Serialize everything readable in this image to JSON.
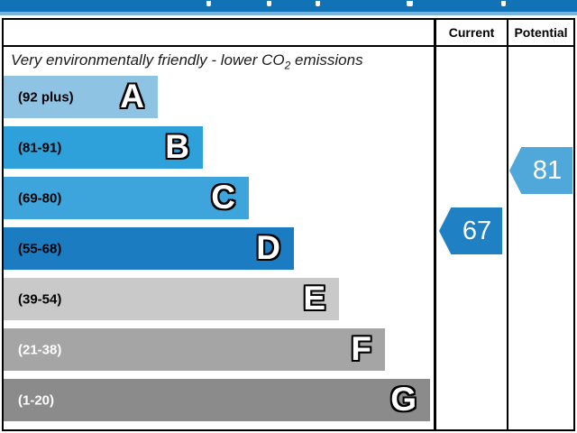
{
  "banner": {
    "color": "#1173B5",
    "strip_color": "#7AB5D9"
  },
  "header": {
    "current": "Current",
    "potential": "Potential"
  },
  "caption": {
    "before_sub": "Very environmentally friendly - lower CO",
    "sub": "2",
    "after_sub": " emissions"
  },
  "bands": [
    {
      "letter": "A",
      "range": "(92 plus)",
      "color": "#8FC3E3"
    },
    {
      "letter": "B",
      "range": "(81-91)",
      "color": "#2FA1DA"
    },
    {
      "letter": "C",
      "range": "(69-80)",
      "color": "#3DA5DC"
    },
    {
      "letter": "D",
      "range": "(55-68)",
      "color": "#1B7CC2"
    },
    {
      "letter": "E",
      "range": "(39-54)",
      "color": "#C9C9C9"
    },
    {
      "letter": "F",
      "range": "(21-38)",
      "color": "#A5A5A5"
    },
    {
      "letter": "G",
      "range": "(1-20)",
      "color": "#8B8B8B"
    }
  ],
  "current": {
    "value": "67",
    "color": "#1F80C4"
  },
  "potential": {
    "value": "81",
    "color": "#4FA7DA"
  },
  "chart_data": {
    "type": "bar",
    "orientation": "horizontal",
    "categories": [
      "A",
      "B",
      "C",
      "D",
      "E",
      "F",
      "G"
    ],
    "band_ranges": [
      "92 plus",
      "81-91",
      "69-80",
      "55-68",
      "39-54",
      "21-38",
      "1-20"
    ],
    "band_colors": [
      "#8FC3E3",
      "#2FA1DA",
      "#3DA5DC",
      "#1B7CC2",
      "#C9C9C9",
      "#A5A5A5",
      "#8B8B8B"
    ],
    "bar_relative_lengths": [
      0.36,
      0.47,
      0.57,
      0.68,
      0.79,
      0.89,
      1.0
    ],
    "annotation": "Very environmentally friendly - lower CO2 emissions",
    "columns": [
      "Current",
      "Potential"
    ],
    "series": [
      {
        "name": "Current",
        "value": 67,
        "band": "D",
        "color": "#1F80C4"
      },
      {
        "name": "Potential",
        "value": 81,
        "band": "B",
        "color": "#4FA7DA"
      }
    ],
    "value_scale": [
      1,
      100
    ],
    "legend_position": "right-columns"
  }
}
